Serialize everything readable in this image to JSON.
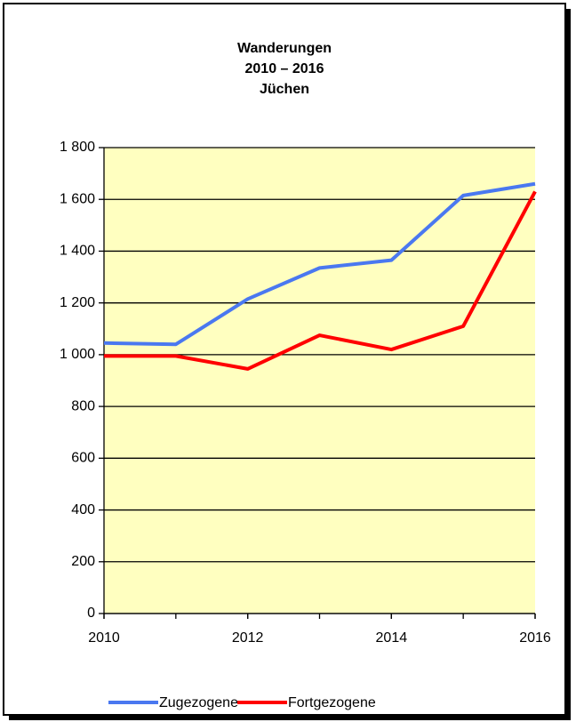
{
  "chart_data": {
    "type": "line",
    "title": [
      "Wanderungen",
      "2010 – 2016",
      "Jüchen"
    ],
    "x": [
      2010,
      2011,
      2012,
      2013,
      2014,
      2015,
      2016
    ],
    "series": [
      {
        "name": "Zugezogene",
        "color": "#4a78f0",
        "values": [
          1045,
          1040,
          1215,
          1335,
          1365,
          1615,
          1660
        ]
      },
      {
        "name": "Fortgezogene",
        "color": "#ff0000",
        "values": [
          995,
          995,
          945,
          1075,
          1020,
          1110,
          1630
        ]
      }
    ],
    "xlim": [
      2010,
      2016
    ],
    "xticks": [
      2010,
      2012,
      2014,
      2016
    ],
    "ylim": [
      0,
      1800
    ],
    "yticks": [
      0,
      200,
      400,
      600,
      800,
      {
        "value": 1000,
        "label": "1 000"
      },
      {
        "value": 1200,
        "label": "1 200"
      },
      {
        "value": 1400,
        "label": "1 400"
      },
      {
        "value": 1600,
        "label": "1 600"
      },
      {
        "value": 1800,
        "label": "1 800"
      }
    ],
    "grid": true,
    "plot_background": "#ffffc0",
    "legend": "bottom"
  }
}
